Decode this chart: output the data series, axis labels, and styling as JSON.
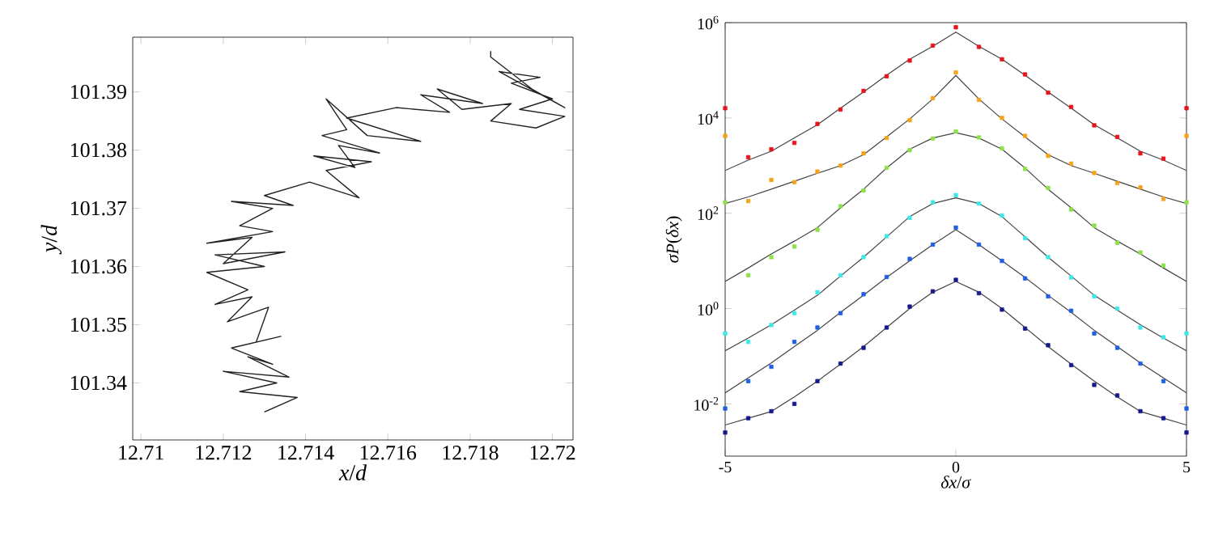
{
  "chart_data": [
    {
      "type": "line",
      "xlabel": "*x*/*d*",
      "ylabel": "*y*/*d*",
      "xlim": [
        12.7098,
        12.7205
      ],
      "ylim": [
        101.3302,
        101.3994
      ],
      "xticks": [
        12.71,
        12.712,
        12.714,
        12.716,
        12.718,
        12.72
      ],
      "yticks": [
        101.34,
        101.35,
        101.36,
        101.37,
        101.38,
        101.39
      ],
      "marker": "none",
      "line_style": "solid",
      "series": [
        {
          "color": "#222222",
          "x": [
            12.713,
            12.7138,
            12.7124,
            12.7133,
            12.712,
            12.7136,
            12.7126,
            12.7132,
            12.7122,
            12.7134,
            12.7128,
            12.7131,
            12.7121,
            12.7127,
            12.7118,
            12.7126,
            12.7116,
            12.713,
            12.7118,
            12.7135,
            12.712,
            12.7127,
            12.7116,
            12.7132,
            12.7124,
            12.7132,
            12.7122,
            12.7137,
            12.713,
            12.7141,
            12.7153,
            12.7145,
            12.7156,
            12.7142,
            12.7152,
            12.7148,
            12.7158,
            12.7144,
            12.715,
            12.7145,
            12.7155,
            12.7168,
            12.715,
            12.7162,
            12.7175,
            12.7168,
            12.7183,
            12.7172,
            12.7178,
            12.719,
            12.7185,
            12.7196,
            12.7203,
            12.7192,
            12.72,
            12.719,
            12.7197,
            12.7187,
            12.7203,
            12.7195,
            12.7185,
            12.7185
          ],
          "values": [
            101.335,
            101.3375,
            101.3385,
            101.34,
            101.342,
            101.341,
            101.3445,
            101.3432,
            101.346,
            101.348,
            101.347,
            101.353,
            101.3505,
            101.3548,
            101.3535,
            101.356,
            101.359,
            101.36,
            101.362,
            101.3625,
            101.3605,
            101.365,
            101.364,
            101.366,
            101.367,
            101.37,
            101.3712,
            101.3705,
            101.3722,
            101.3745,
            101.3718,
            101.3765,
            101.378,
            101.379,
            101.377,
            101.3808,
            101.3795,
            101.3825,
            101.3835,
            101.3888,
            101.3825,
            101.3815,
            101.3855,
            101.3873,
            101.3865,
            101.3895,
            101.388,
            101.3905,
            101.387,
            101.388,
            101.385,
            101.3838,
            101.3858,
            101.387,
            101.3888,
            101.3915,
            101.3925,
            101.3935,
            101.3873,
            101.3905,
            101.396,
            101.397
          ]
        }
      ]
    },
    {
      "type": "scatter",
      "xlabel": "*δx*/*σ*",
      "ylabel": "*σP*(*δx*)",
      "log": "y",
      "xlim": [
        -5,
        5
      ],
      "ylim": [
        0.0008,
        1000000
      ],
      "xticks": [
        -5,
        0,
        5
      ],
      "yticks": [
        {
          "value": 0.01,
          "label": "10$^{-2}$"
        },
        {
          "value": 1,
          "label": "10$^{0}$"
        },
        {
          "value": 100,
          "label": "10$^{2}$"
        },
        {
          "value": 10000,
          "label": "10$^{4}$"
        },
        {
          "value": 1000000,
          "label": "10$^{6}$"
        }
      ],
      "marker": "square",
      "x": [
        -5,
        -4.5,
        -4,
        -3.5,
        -3,
        -2.5,
        -2,
        -1.5,
        -1,
        -0.5,
        0,
        0.5,
        1,
        1.5,
        2,
        2.5,
        3,
        3.5,
        4,
        4.5,
        5
      ],
      "series": [
        {
          "color": "#e8141b",
          "values": [
            16000,
            1500,
            2200,
            3000,
            7500,
            15000,
            37000,
            75000,
            160000,
            330000,
            800000,
            310000,
            170000,
            82000,
            34000,
            17000,
            7000,
            4000,
            1800,
            1400,
            16000
          ]
        },
        {
          "color": "#f5a31a",
          "values": [
            4200,
            180,
            500,
            450,
            750,
            1000,
            1800,
            3800,
            9000,
            26000,
            90000,
            24000,
            10000,
            4200,
            1600,
            1100,
            700,
            430,
            350,
            200,
            4200
          ]
        },
        {
          "color": "#8ee04a",
          "values": [
            170,
            5,
            12,
            20,
            45,
            140,
            300,
            900,
            2100,
            3700,
            5200,
            3900,
            2300,
            850,
            340,
            120,
            55,
            24,
            15,
            8,
            170
          ]
        },
        {
          "color": "#3ee8e8",
          "values": [
            0.3,
            0.2,
            0.45,
            0.8,
            2.2,
            5,
            12,
            33,
            80,
            170,
            240,
            160,
            90,
            30,
            12,
            4.5,
            1.8,
            1,
            0.4,
            0.25,
            0.3
          ]
        },
        {
          "color": "#2060e0",
          "values": [
            0.008,
            0.03,
            0.06,
            0.2,
            0.4,
            0.8,
            2,
            4.6,
            11,
            22,
            50,
            22,
            10,
            4.3,
            1.8,
            0.9,
            0.3,
            0.15,
            0.07,
            0.03,
            0.008
          ]
        },
        {
          "color": "#141a8c",
          "values": [
            0.0025,
            0.005,
            0.007,
            0.01,
            0.03,
            0.07,
            0.15,
            0.4,
            1.1,
            2.3,
            4,
            2.1,
            0.95,
            0.38,
            0.17,
            0.065,
            0.025,
            0.015,
            0.007,
            0.005,
            0.0025
          ]
        },
        {
          "type": "line",
          "marker": "none",
          "color": "#444444",
          "values": [
            790,
            1300,
            2000,
            3800,
            7200,
            16000,
            35000,
            79000,
            170000,
            320000,
            630000,
            320000,
            170000,
            79000,
            35000,
            16000,
            7200,
            3800,
            2000,
            1300,
            790
          ]
        },
        {
          "type": "line",
          "marker": "none",
          "color": "#444444",
          "values": [
            160,
            220,
            320,
            470,
            690,
            1000,
            1700,
            4000,
            9500,
            25000,
            78000,
            25000,
            9500,
            4000,
            1700,
            1000,
            690,
            470,
            320,
            220,
            160
          ]
        },
        {
          "type": "line",
          "marker": "none",
          "color": "#444444",
          "values": [
            3.7,
            7.1,
            14,
            26,
            50,
            130,
            320,
            890,
            2200,
            3800,
            4900,
            3800,
            2200,
            890,
            320,
            130,
            50,
            26,
            14,
            7.1,
            3.7
          ]
        },
        {
          "type": "line",
          "marker": "none",
          "color": "#444444",
          "values": [
            0.13,
            0.24,
            0.46,
            0.93,
            1.9,
            4.8,
            12,
            32,
            85,
            160,
            210,
            160,
            85,
            32,
            12,
            4.8,
            1.9,
            0.93,
            0.46,
            0.24,
            0.13
          ]
        },
        {
          "type": "line",
          "marker": "none",
          "color": "#444444",
          "values": [
            0.017,
            0.035,
            0.072,
            0.16,
            0.35,
            0.83,
            1.9,
            4.5,
            10,
            22,
            45,
            22,
            10,
            4.5,
            1.9,
            0.83,
            0.35,
            0.16,
            0.072,
            0.035,
            0.017
          ]
        },
        {
          "type": "line",
          "marker": "none",
          "color": "#444444",
          "values": [
            0.0036,
            0.005,
            0.0069,
            0.014,
            0.03,
            0.068,
            0.16,
            0.4,
            1,
            2.2,
            3.7,
            2.2,
            1,
            0.4,
            0.16,
            0.068,
            0.03,
            0.014,
            0.0069,
            0.005,
            0.0036
          ]
        }
      ]
    }
  ]
}
